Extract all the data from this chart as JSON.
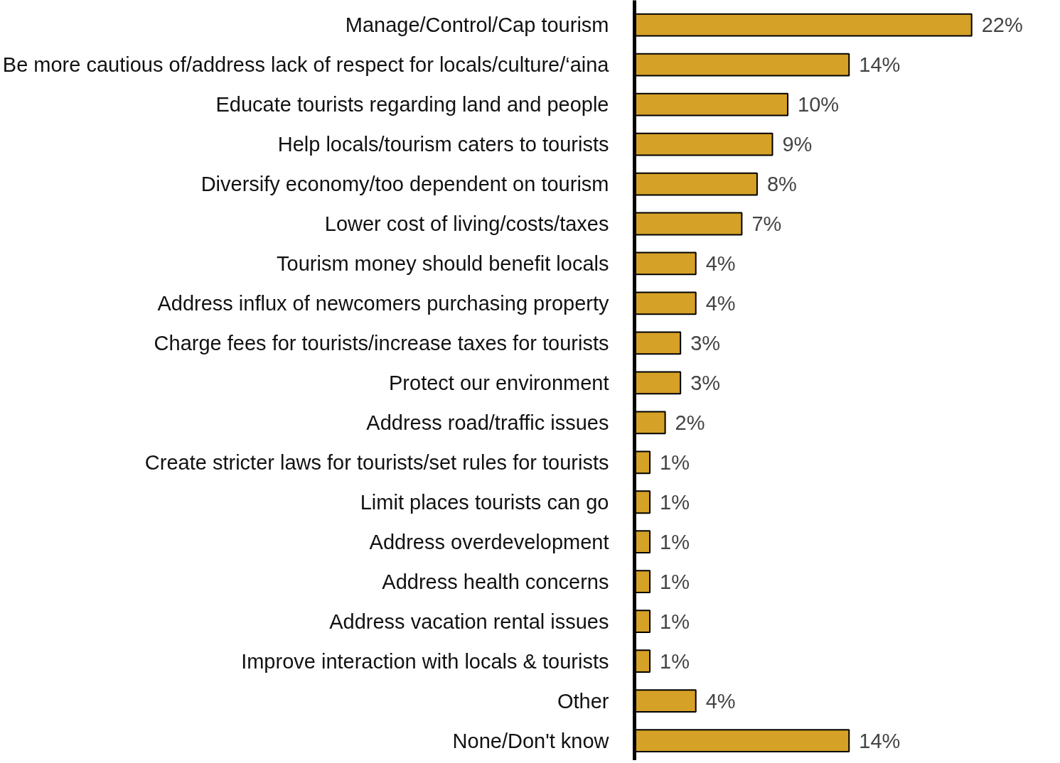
{
  "chart_data": {
    "type": "bar",
    "orientation": "horizontal",
    "tick_labels": "y",
    "categories": [
      "Manage/Control/Cap tourism",
      "Be more cautious of/address lack of respect for locals/culture/‘aina",
      "Educate tourists regarding land and people",
      "Help locals/tourism caters to tourists",
      "Diversify economy/too dependent on tourism",
      "Lower cost of living/costs/taxes",
      "Tourism money should benefit locals",
      "Address influx of newcomers purchasing property",
      "Charge fees for tourists/increase taxes for tourists",
      "Protect our environment",
      "Address road/traffic issues",
      "Create stricter laws for tourists/set rules for tourists",
      "Limit places tourists can go",
      "Address overdevelopment",
      "Address health concerns",
      "Address vacation rental issues",
      "Improve interaction with locals & tourists",
      "Other",
      "None/Don't know"
    ],
    "series": [
      {
        "color": "#d5a126",
        "values": [
          22,
          14,
          10,
          9,
          8,
          7,
          4,
          4,
          3,
          3,
          2,
          1,
          1,
          1,
          1,
          1,
          1,
          4,
          14
        ],
        "value_labels": [
          "22%",
          "14%",
          "10%",
          "9%",
          "8%",
          "7%",
          "4%",
          "4%",
          "3%",
          "3%",
          "2%",
          "1%",
          "1%",
          "1%",
          "1%",
          "1%",
          "1%",
          "4%",
          "14%"
        ]
      }
    ]
  }
}
